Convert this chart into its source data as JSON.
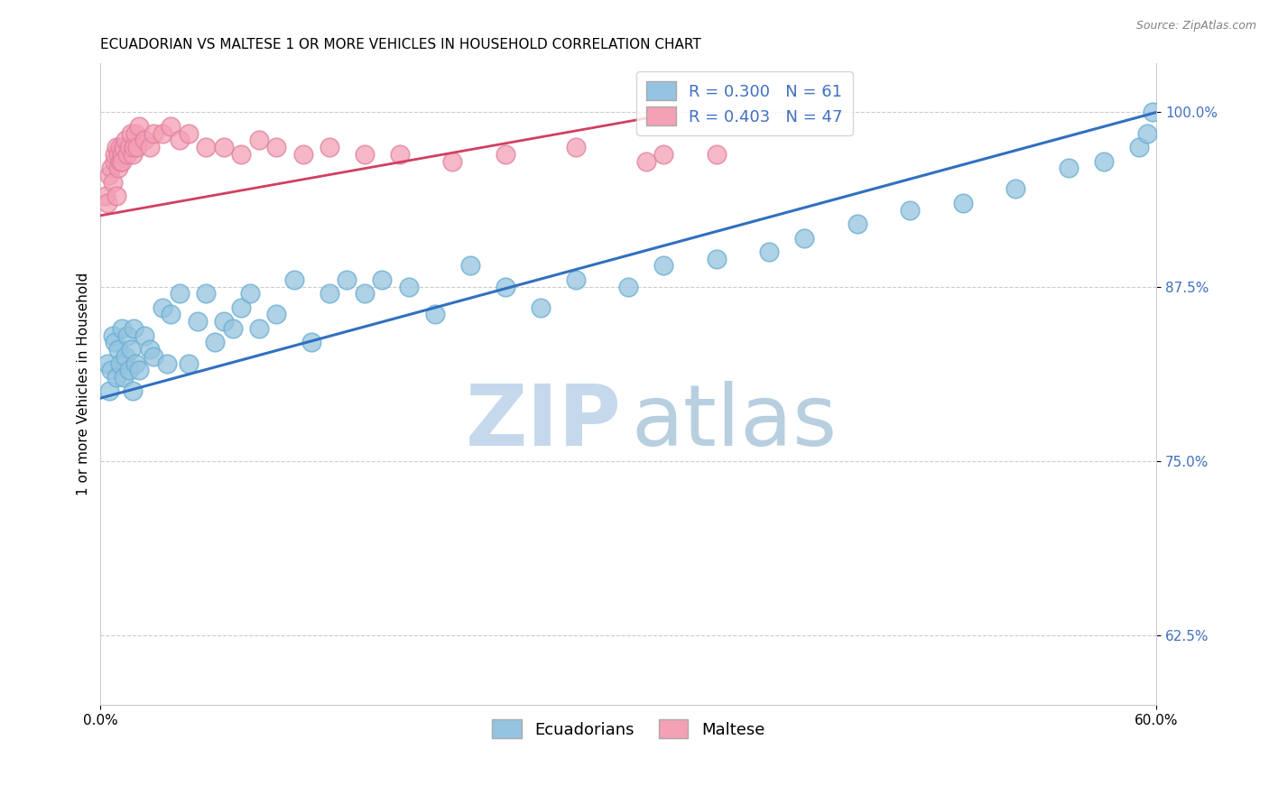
{
  "title": "ECUADORIAN VS MALTESE 1 OR MORE VEHICLES IN HOUSEHOLD CORRELATION CHART",
  "source": "Source: ZipAtlas.com",
  "xmin": 0.0,
  "xmax": 0.6,
  "ymin": 0.575,
  "ymax": 1.035,
  "ylabel": "1 or more Vehicles in Household",
  "ecuadorian_R": 0.3,
  "ecuadorian_N": 61,
  "maltese_R": 0.403,
  "maltese_N": 47,
  "blue_color": "#94c4e0",
  "pink_color": "#f4a0b5",
  "blue_edge_color": "#6aaed0",
  "pink_edge_color": "#e080a0",
  "blue_line_color": "#3070c0",
  "pink_line_color": "#d04060",
  "ytick_values": [
    0.625,
    0.75,
    0.875,
    1.0
  ],
  "ytick_labels": [
    "62.5%",
    "75.0%",
    "87.5%",
    "100.0%"
  ],
  "xtick_values": [
    0.0,
    0.6
  ],
  "xtick_labels": [
    "0.0%",
    "60.0%"
  ],
  "blue_line_x": [
    0.0,
    0.6
  ],
  "blue_line_y": [
    0.795,
    1.0
  ],
  "pink_line_x": [
    0.0,
    0.32
  ],
  "pink_line_y": [
    0.926,
    0.998
  ],
  "ecuadorian_x": [
    0.004,
    0.005,
    0.006,
    0.007,
    0.008,
    0.009,
    0.01,
    0.011,
    0.012,
    0.013,
    0.014,
    0.015,
    0.016,
    0.017,
    0.018,
    0.019,
    0.02,
    0.022,
    0.025,
    0.028,
    0.03,
    0.035,
    0.038,
    0.04,
    0.045,
    0.05,
    0.055,
    0.06,
    0.065,
    0.07,
    0.075,
    0.08,
    0.085,
    0.09,
    0.1,
    0.11,
    0.12,
    0.13,
    0.14,
    0.15,
    0.16,
    0.175,
    0.19,
    0.21,
    0.23,
    0.25,
    0.27,
    0.3,
    0.32,
    0.35,
    0.38,
    0.4,
    0.43,
    0.46,
    0.49,
    0.52,
    0.55,
    0.57,
    0.59,
    0.595,
    0.598
  ],
  "ecuadorian_y": [
    0.82,
    0.8,
    0.815,
    0.84,
    0.835,
    0.81,
    0.83,
    0.82,
    0.845,
    0.81,
    0.825,
    0.84,
    0.815,
    0.83,
    0.8,
    0.845,
    0.82,
    0.815,
    0.84,
    0.83,
    0.825,
    0.86,
    0.82,
    0.855,
    0.87,
    0.82,
    0.85,
    0.87,
    0.835,
    0.85,
    0.845,
    0.86,
    0.87,
    0.845,
    0.855,
    0.88,
    0.835,
    0.87,
    0.88,
    0.87,
    0.88,
    0.875,
    0.855,
    0.89,
    0.875,
    0.86,
    0.88,
    0.875,
    0.89,
    0.895,
    0.9,
    0.91,
    0.92,
    0.93,
    0.935,
    0.945,
    0.96,
    0.965,
    0.975,
    0.985,
    1.0
  ],
  "maltese_x": [
    0.003,
    0.004,
    0.005,
    0.006,
    0.007,
    0.008,
    0.008,
    0.009,
    0.009,
    0.01,
    0.01,
    0.011,
    0.011,
    0.012,
    0.012,
    0.013,
    0.014,
    0.015,
    0.016,
    0.017,
    0.018,
    0.019,
    0.02,
    0.021,
    0.022,
    0.025,
    0.028,
    0.03,
    0.035,
    0.04,
    0.045,
    0.05,
    0.06,
    0.07,
    0.08,
    0.09,
    0.1,
    0.115,
    0.13,
    0.15,
    0.17,
    0.2,
    0.23,
    0.27,
    0.31,
    0.32,
    0.35
  ],
  "maltese_y": [
    0.94,
    0.935,
    0.955,
    0.96,
    0.95,
    0.965,
    0.97,
    0.94,
    0.975,
    0.96,
    0.97,
    0.965,
    0.975,
    0.97,
    0.965,
    0.975,
    0.98,
    0.97,
    0.975,
    0.985,
    0.97,
    0.975,
    0.985,
    0.975,
    0.99,
    0.98,
    0.975,
    0.985,
    0.985,
    0.99,
    0.98,
    0.985,
    0.975,
    0.975,
    0.97,
    0.98,
    0.975,
    0.97,
    0.975,
    0.97,
    0.97,
    0.965,
    0.97,
    0.975,
    0.965,
    0.97,
    0.97
  ],
  "legend_fontsize": 13,
  "title_fontsize": 11,
  "axis_label_fontsize": 11,
  "tick_fontsize": 11,
  "tick_color": "#4070c0"
}
